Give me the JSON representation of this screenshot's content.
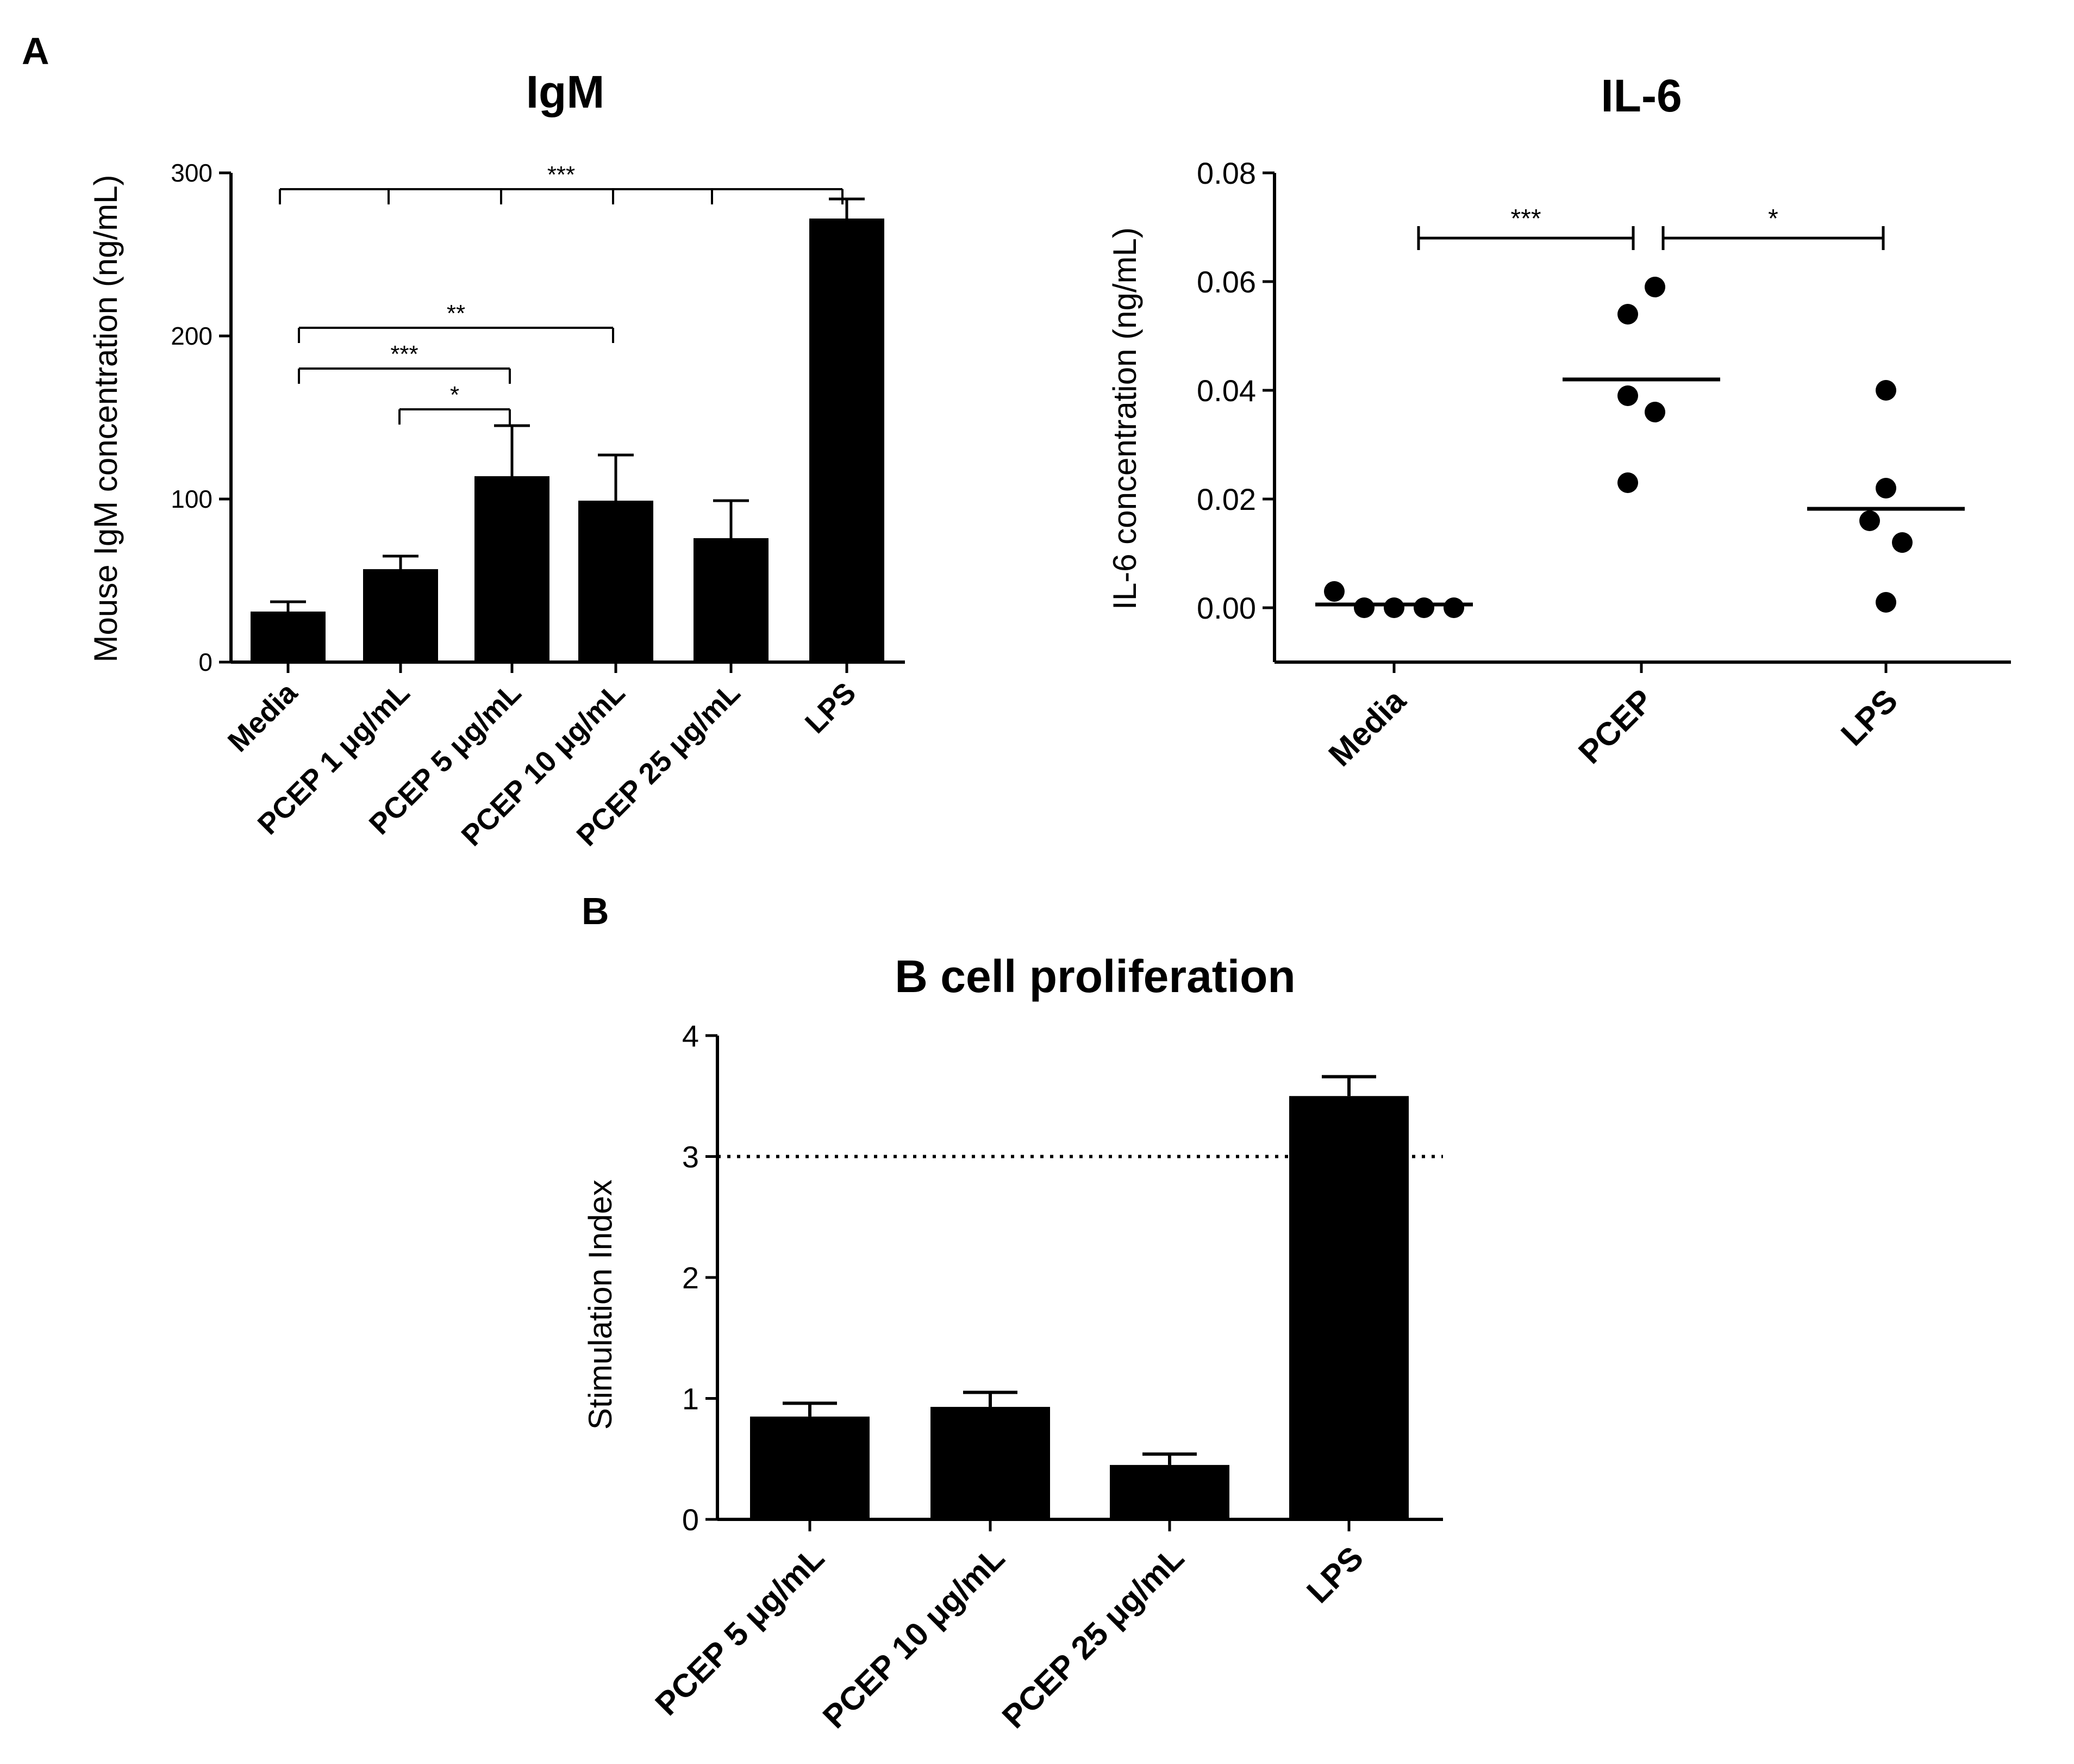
{
  "panel_labels": {
    "a": "A",
    "b": "B"
  },
  "chart_data": [
    {
      "id": "igm",
      "type": "bar",
      "title": "IgM",
      "xlabel": "",
      "ylabel": "Mouse IgM concentration (ng/mL)",
      "ylim": [
        0,
        300
      ],
      "yticks": [
        0,
        100,
        200,
        300
      ],
      "ytick_labels": [
        "0",
        "100",
        "200",
        "300"
      ],
      "categories": [
        "Media",
        "PCEP 1 μg/mL",
        "PCEP 5 μg/mL",
        "PCEP 10 μg/mL",
        "PCEP 25 μg/mL",
        "LPS"
      ],
      "values": [
        31,
        57,
        114,
        99,
        76,
        272
      ],
      "errors": [
        6,
        8,
        31,
        28,
        23,
        12
      ],
      "significance": [
        {
          "from": 0,
          "to": 5,
          "label": "***",
          "level": 290,
          "ticks": [
            0,
            1,
            2,
            3,
            4
          ]
        },
        {
          "from": 0,
          "to": 3,
          "label": "**",
          "level": 205
        },
        {
          "from": 0,
          "to": 2,
          "label": "***",
          "level": 180
        },
        {
          "from": 1,
          "to": 2,
          "label": "*",
          "level": 155
        }
      ],
      "color": "#000000"
    },
    {
      "id": "il6",
      "type": "scatter",
      "title": "IL-6",
      "xlabel": "",
      "ylabel": "IL-6 concentration (ng/mL)",
      "ylim": [
        -0.01,
        0.08
      ],
      "yticks": [
        0,
        0.02,
        0.04,
        0.06,
        0.08
      ],
      "ytick_labels": [
        "0.00",
        "0.02",
        "0.04",
        "0.06",
        "0.08"
      ],
      "categories": [
        "Media",
        "PCEP",
        "LPS"
      ],
      "points": [
        [
          0.003,
          0.0,
          0.0,
          0.0,
          0.0
        ],
        [
          0.059,
          0.054,
          0.039,
          0.036,
          0.023
        ],
        [
          0.04,
          0.022,
          0.016,
          0.012,
          0.001
        ]
      ],
      "means": [
        0.0006,
        0.042,
        0.0182
      ],
      "significance": [
        {
          "from": 0,
          "to": 1,
          "label": "***",
          "level": 0.068
        },
        {
          "from": 1,
          "to": 2,
          "label": "*",
          "level": 0.068
        }
      ],
      "color": "#000000"
    },
    {
      "id": "bcell",
      "type": "bar",
      "title": "B cell proliferation",
      "xlabel": "",
      "ylabel": "Stimulation Index",
      "ylim": [
        0,
        4
      ],
      "yticks": [
        0,
        1,
        2,
        3,
        4
      ],
      "ytick_labels": [
        "0",
        "1",
        "2",
        "3",
        "4"
      ],
      "categories": [
        "PCEP 5 μg/mL",
        "PCEP 10 μg/mL",
        "PCEP 25 μg/mL",
        "LPS"
      ],
      "values": [
        0.85,
        0.93,
        0.45,
        3.5
      ],
      "errors": [
        0.11,
        0.12,
        0.09,
        0.16
      ],
      "reference_line": 3,
      "color": "#000000"
    }
  ]
}
